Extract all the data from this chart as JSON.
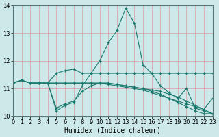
{
  "series": [
    {
      "x": [
        0,
        1,
        2,
        3,
        4,
        5,
        6,
        7,
        8,
        9,
        10,
        11,
        12,
        13,
        14,
        15,
        16,
        17,
        18,
        19,
        20,
        21,
        22,
        23
      ],
      "y": [
        11.2,
        11.3,
        11.2,
        11.2,
        11.2,
        11.55,
        11.65,
        11.7,
        11.55,
        11.55,
        11.55,
        11.55,
        11.55,
        11.55,
        11.55,
        11.55,
        11.55,
        11.55,
        11.55,
        11.55,
        11.55,
        11.55,
        11.55,
        11.55
      ]
    },
    {
      "x": [
        0,
        1,
        2,
        3,
        4,
        5,
        6,
        7,
        8,
        9,
        10,
        11,
        12,
        13,
        14,
        15,
        16,
        17,
        18,
        19,
        20,
        21,
        22,
        23
      ],
      "y": [
        11.2,
        11.3,
        11.2,
        11.2,
        11.2,
        10.2,
        10.4,
        10.5,
        11.1,
        11.55,
        12.0,
        12.65,
        13.1,
        13.9,
        13.35,
        11.85,
        11.55,
        11.1,
        10.85,
        10.65,
        11.0,
        10.3,
        10.2,
        10.1
      ]
    },
    {
      "x": [
        0,
        1,
        2,
        3,
        4,
        5,
        6,
        7,
        8,
        9,
        10,
        11,
        12,
        13,
        14,
        15,
        16,
        17,
        18,
        19,
        20,
        21,
        22,
        23
      ],
      "y": [
        11.2,
        11.3,
        11.2,
        11.2,
        11.2,
        11.2,
        11.2,
        11.2,
        11.2,
        11.2,
        11.2,
        11.2,
        11.15,
        11.1,
        11.05,
        11.0,
        10.95,
        10.9,
        10.8,
        10.7,
        10.55,
        10.4,
        10.25,
        10.1
      ]
    },
    {
      "x": [
        0,
        1,
        2,
        3,
        4,
        5,
        6,
        7,
        8,
        9,
        10,
        11,
        12,
        13,
        14,
        15,
        16,
        17,
        18,
        19,
        20,
        21,
        22,
        23
      ],
      "y": [
        11.2,
        11.3,
        11.2,
        11.2,
        11.2,
        11.2,
        11.2,
        11.2,
        11.2,
        11.2,
        11.2,
        11.15,
        11.1,
        11.05,
        11.0,
        10.95,
        10.85,
        10.75,
        10.65,
        10.55,
        10.45,
        10.35,
        10.25,
        10.65
      ]
    },
    {
      "x": [
        0,
        1,
        2,
        3,
        4,
        5,
        6,
        7,
        8,
        9,
        10,
        11,
        12,
        13,
        14,
        15,
        16,
        17,
        18,
        19,
        20,
        21,
        22,
        23
      ],
      "y": [
        11.2,
        11.3,
        11.2,
        11.2,
        11.2,
        10.3,
        10.45,
        10.55,
        10.9,
        11.1,
        11.2,
        11.2,
        11.15,
        11.1,
        11.05,
        11.0,
        10.9,
        10.8,
        10.65,
        10.5,
        10.35,
        10.2,
        10.1,
        10.1
      ]
    }
  ],
  "line_color": "#1a7a6e",
  "bg_color": "#cce8e8",
  "grid_color": "#d8a0a0",
  "xlabel": "Humidex (Indice chaleur)",
  "xlim": [
    0,
    23
  ],
  "ylim": [
    10.0,
    14.0
  ],
  "yticks": [
    10,
    11,
    12,
    13,
    14
  ],
  "xticks": [
    0,
    1,
    2,
    3,
    4,
    5,
    6,
    7,
    8,
    9,
    10,
    11,
    12,
    13,
    14,
    15,
    16,
    17,
    18,
    19,
    20,
    21,
    22,
    23
  ],
  "xlabel_fontsize": 7,
  "tick_fontsize": 6,
  "marker": "+",
  "markersize": 3.5,
  "linewidth": 0.8
}
